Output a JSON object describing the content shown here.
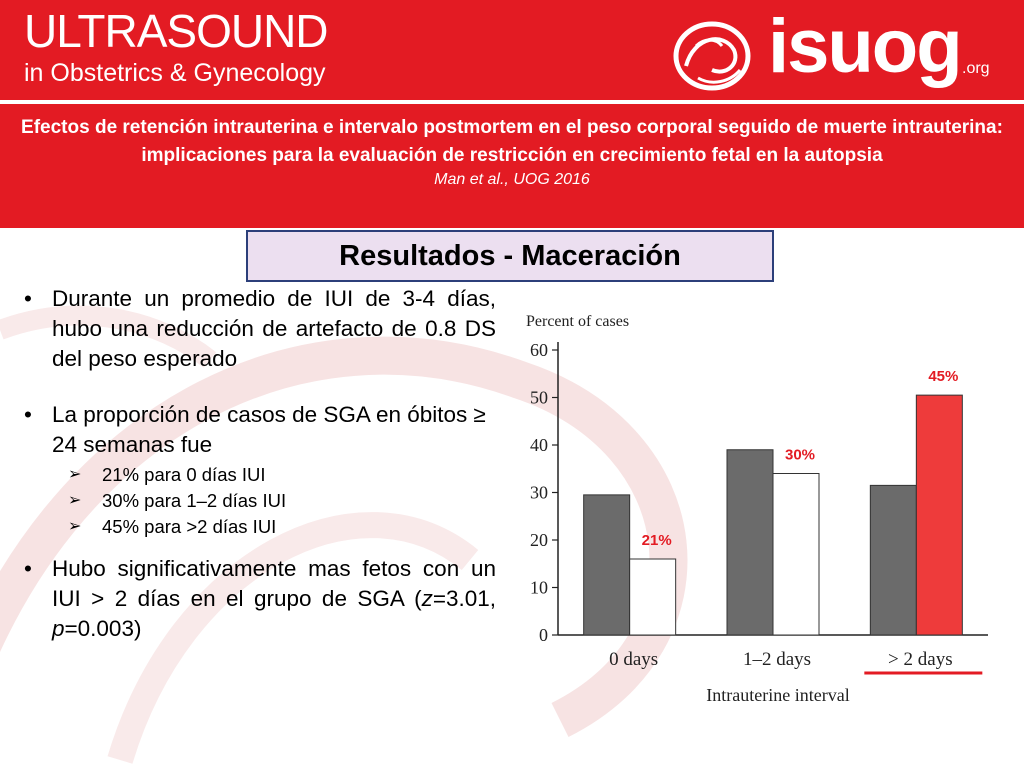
{
  "header": {
    "journal_title": "ULTRASOUND",
    "journal_subtitle": "in Obstetrics & Gynecology",
    "logo_text": "isuog",
    "logo_suffix": ".org",
    "logo_icon": "isuog-swirl-icon"
  },
  "paper": {
    "title": "Efectos de retención intrauterina e intervalo postmortem en el peso corporal seguido de muerte intrauterina: implicaciones para la evaluación de restricción en crecimiento fetal en la autopsia",
    "citation": "Man et al., UOG 2016"
  },
  "section_title": "Resultados - Maceración",
  "bullets": [
    {
      "text": "Durante un promedio de IUI de 3-4 días, hubo una reducción de artefacto de 0.8 DS del peso esperado"
    },
    {
      "text": "La proporción de casos de SGA en óbitos ≥ 24 semanas fue",
      "sub": [
        "21% para 0 días IUI",
        "30% para 1–2 días IUI",
        "45% para >2 días IUI"
      ]
    },
    {
      "text_parts": [
        "Hubo significativamente mas fetos con un IUI > 2 días en el grupo de SGA (",
        "z",
        "=3.01, ",
        "p",
        "=0.003)"
      ]
    }
  ],
  "bullet_symbol": "•",
  "sub_bullet_symbol": "➢",
  "chart_data": {
    "type": "bar",
    "ylabel": "Percent of cases",
    "xlabel": "Intrauterine interval",
    "categories": [
      "0 days",
      "1–2 days",
      "> 2 days"
    ],
    "ylim": [
      0,
      60
    ],
    "yticks": [
      0,
      10,
      20,
      30,
      40,
      50,
      60
    ],
    "series": [
      {
        "values": [
          29.5,
          39,
          31.5
        ],
        "color": "#6b6b6b"
      },
      {
        "values": [
          16,
          34,
          50.5
        ],
        "colors": [
          "#ffffff",
          "#ffffff",
          "#ee3b3b"
        ]
      }
    ],
    "data_labels": [
      "21%",
      "30%",
      "45%"
    ],
    "label_color": "#e31b23",
    "highlight_category": "> 2 days",
    "grid": false
  }
}
